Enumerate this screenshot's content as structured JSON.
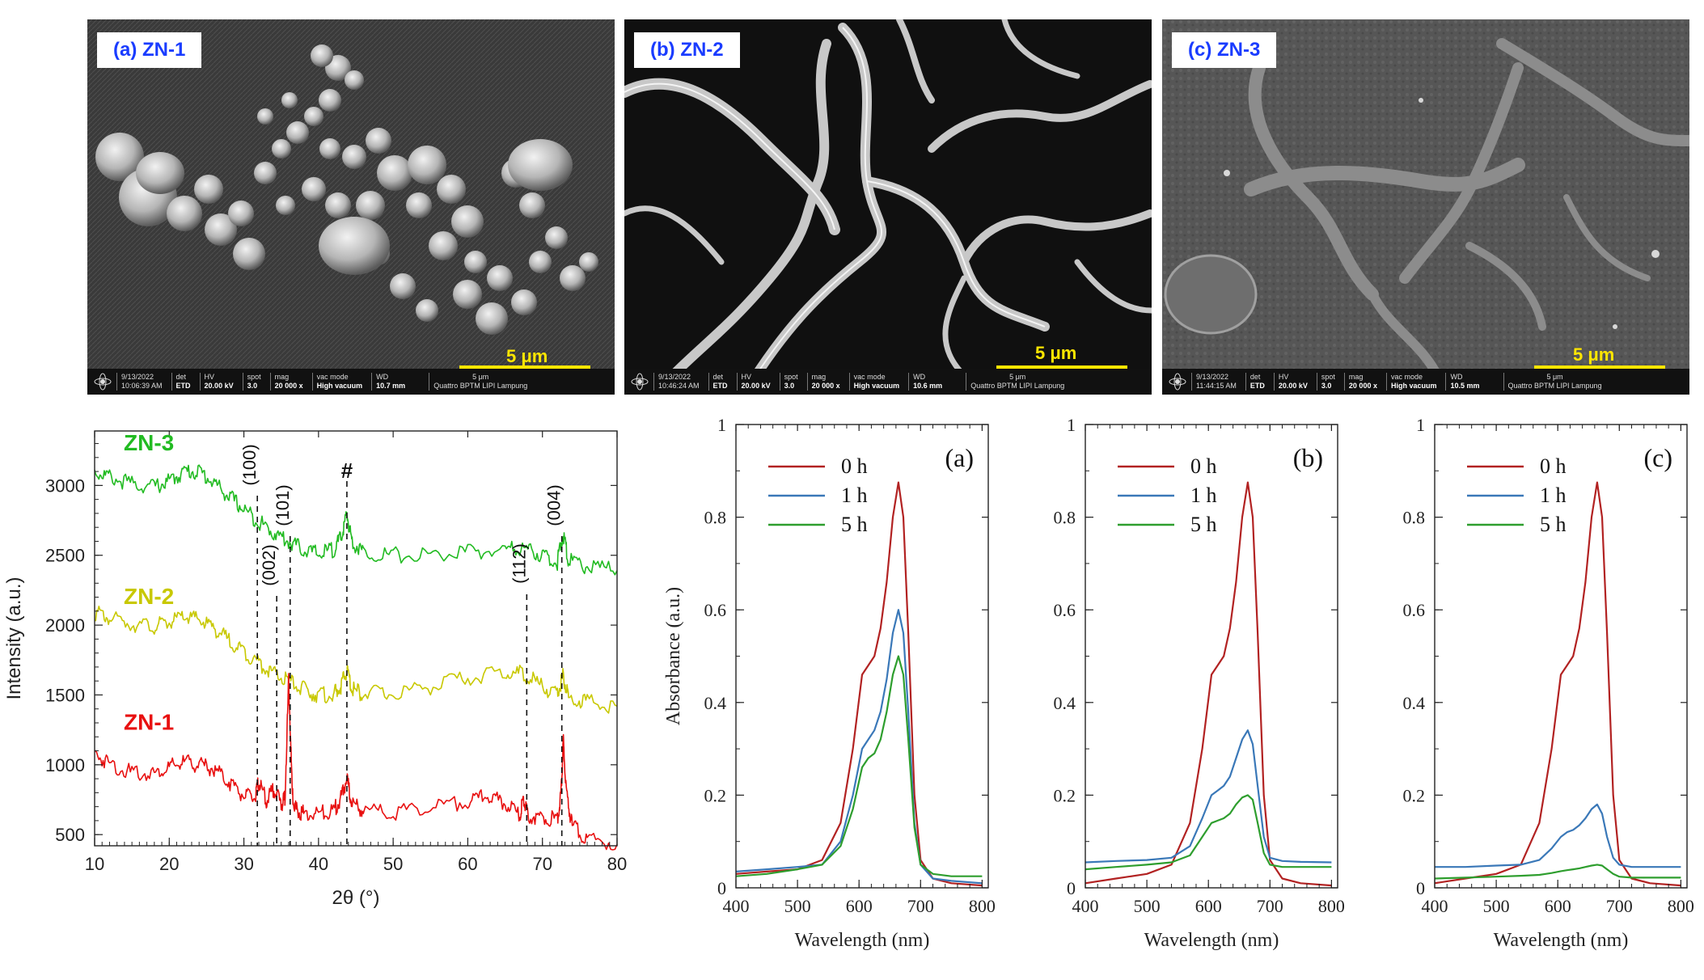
{
  "sem_panels": [
    {
      "label": "(a) ZN-1",
      "scale": "5 μm",
      "bar": {
        "date": "9/13/2022",
        "time": "10:06:39 AM",
        "det_label": "det",
        "det": "ETD",
        "hv_label": "HV",
        "hv": "20.00 kV",
        "spot_label": "spot",
        "spot": "3.0",
        "mag_label": "mag",
        "mag": "20 000 x",
        "vac_label": "vac mode",
        "vac": "High vacuum",
        "wd_label": "WD",
        "wd": "10.7 mm",
        "scale_small": "5 μm",
        "facility": "Quattro BPTM LIPI Lampung"
      }
    },
    {
      "label": "(b) ZN-2",
      "scale": "5 μm",
      "bar": {
        "date": "9/13/2022",
        "time": "10:46:24 AM",
        "det_label": "det",
        "det": "ETD",
        "hv_label": "HV",
        "hv": "20.00 kV",
        "spot_label": "spot",
        "spot": "3.0",
        "mag_label": "mag",
        "mag": "20 000 x",
        "vac_label": "vac mode",
        "vac": "High vacuum",
        "wd_label": "WD",
        "wd": "10.6 mm",
        "scale_small": "5 μm",
        "facility": "Quattro BPTM LIPI Lampung"
      }
    },
    {
      "label": "(c) ZN-3",
      "scale": "5 μm",
      "bar": {
        "date": "9/13/2022",
        "time": "11:44:15 AM",
        "det_label": "det",
        "det": "ETD",
        "hv_label": "HV",
        "hv": "20.00 kV",
        "spot_label": "spot",
        "spot": "3.0",
        "mag_label": "mag",
        "mag": "20 000 x",
        "vac_label": "vac mode",
        "vac": "High vacuum",
        "wd_label": "WD",
        "wd": "10.5 mm",
        "scale_small": "5 μm",
        "facility": "Quattro BPTM LIPI Lampung"
      }
    }
  ],
  "chart_data": [
    {
      "type": "line",
      "xlabel": "2θ (°)",
      "ylabel": "Intensity (a.u.)",
      "xlim": [
        10,
        80
      ],
      "ylim": [
        420,
        3390
      ],
      "xticks": [
        10,
        20,
        30,
        40,
        50,
        60,
        70,
        80
      ],
      "yticks": [
        500,
        1000,
        1500,
        2000,
        2500,
        3000
      ],
      "series": [
        {
          "name": "ZN-3",
          "color": "#22bb22",
          "x": [
            10,
            12,
            15,
            18,
            20,
            22,
            24,
            26,
            28,
            30,
            32,
            34,
            36,
            38,
            40,
            42,
            43,
            43.8,
            44.5,
            46,
            50,
            55,
            60,
            65,
            67.5,
            70,
            72,
            72.8,
            73.5,
            76,
            80
          ],
          "y": [
            3100,
            3060,
            3010,
            2990,
            3030,
            3100,
            3100,
            3020,
            2920,
            2830,
            2740,
            2660,
            2600,
            2540,
            2510,
            2540,
            2620,
            2790,
            2600,
            2520,
            2500,
            2500,
            2520,
            2540,
            2550,
            2500,
            2450,
            2650,
            2460,
            2420,
            2390
          ]
        },
        {
          "name": "ZN-2",
          "color": "#c8c800",
          "x": [
            10,
            12,
            15,
            18,
            20,
            22,
            24,
            26,
            28,
            30,
            32,
            34,
            36,
            38,
            40,
            42,
            43,
            43.8,
            44.5,
            46,
            50,
            55,
            60,
            65,
            67.5,
            70,
            72,
            72.8,
            73.5,
            76,
            80
          ],
          "y": [
            2090,
            2050,
            2010,
            1990,
            2020,
            2060,
            2040,
            1980,
            1890,
            1810,
            1730,
            1650,
            1600,
            1540,
            1500,
            1500,
            1560,
            1680,
            1540,
            1510,
            1510,
            1560,
            1620,
            1660,
            1650,
            1560,
            1500,
            1640,
            1480,
            1450,
            1420
          ]
        },
        {
          "name": "ZN-1",
          "color": "#e81010",
          "x": [
            10,
            12,
            15,
            18,
            20,
            22,
            24,
            26,
            28,
            30,
            31.5,
            32,
            33,
            34,
            35,
            35.5,
            36,
            36.5,
            37,
            38,
            40,
            42,
            43,
            43.8,
            44.5,
            46,
            50,
            55,
            60,
            62.5,
            65,
            67,
            67.5,
            68,
            70,
            72,
            72.5,
            72.8,
            73.2,
            74,
            76,
            80
          ],
          "y": [
            1080,
            1010,
            940,
            940,
            980,
            1020,
            1000,
            970,
            880,
            780,
            760,
            880,
            740,
            830,
            720,
            760,
            1600,
            780,
            680,
            650,
            650,
            670,
            760,
            900,
            720,
            670,
            660,
            690,
            740,
            780,
            720,
            640,
            760,
            640,
            620,
            610,
            800,
            1180,
            800,
            560,
            470,
            430
          ]
        }
      ],
      "annotations": [
        {
          "text": "(100)",
          "x": 31.8
        },
        {
          "text": "(002)",
          "x": 34.4
        },
        {
          "text": "(101)",
          "x": 36.2
        },
        {
          "text": "#",
          "x": 43.8
        },
        {
          "text": "(112)",
          "x": 67.9
        },
        {
          "text": "(004)",
          "x": 72.6
        }
      ]
    },
    {
      "type": "line",
      "label": "(a)",
      "xlabel": "Wavelength (nm)",
      "ylabel": "Absorbance (a.u.)",
      "xlim": [
        400,
        810
      ],
      "ylim": [
        0,
        1
      ],
      "xticks": [
        400,
        500,
        600,
        700,
        800
      ],
      "yticks": [
        0,
        0.2,
        0.4,
        0.6,
        0.8,
        1
      ],
      "legend": "top-left",
      "series": [
        {
          "name": "0 h",
          "color": "#b22222",
          "x": [
            400,
            450,
            500,
            540,
            570,
            590,
            605,
            615,
            625,
            635,
            645,
            655,
            664,
            672,
            680,
            690,
            700,
            720,
            750,
            800
          ],
          "y": [
            0.03,
            0.035,
            0.04,
            0.06,
            0.14,
            0.3,
            0.46,
            0.48,
            0.5,
            0.56,
            0.66,
            0.8,
            0.875,
            0.8,
            0.55,
            0.2,
            0.06,
            0.02,
            0.01,
            0.005
          ]
        },
        {
          "name": "1 h",
          "color": "#3a78b8",
          "x": [
            400,
            450,
            500,
            540,
            570,
            590,
            605,
            615,
            625,
            635,
            645,
            655,
            664,
            672,
            680,
            690,
            700,
            720,
            750,
            800
          ],
          "y": [
            0.035,
            0.04,
            0.045,
            0.05,
            0.1,
            0.2,
            0.3,
            0.32,
            0.34,
            0.38,
            0.45,
            0.55,
            0.6,
            0.55,
            0.38,
            0.14,
            0.05,
            0.02,
            0.015,
            0.01
          ]
        },
        {
          "name": "5 h",
          "color": "#2e9e2e",
          "x": [
            400,
            450,
            500,
            540,
            570,
            590,
            605,
            615,
            625,
            635,
            645,
            655,
            664,
            672,
            680,
            690,
            700,
            720,
            750,
            800
          ],
          "y": [
            0.025,
            0.03,
            0.04,
            0.05,
            0.09,
            0.17,
            0.26,
            0.28,
            0.29,
            0.32,
            0.38,
            0.46,
            0.5,
            0.46,
            0.32,
            0.13,
            0.05,
            0.03,
            0.025,
            0.025
          ]
        }
      ]
    },
    {
      "type": "line",
      "label": "(b)",
      "xlabel": "Wavelength (nm)",
      "ylabel": "",
      "xlim": [
        400,
        810
      ],
      "ylim": [
        0,
        1
      ],
      "xticks": [
        400,
        500,
        600,
        700,
        800
      ],
      "yticks": [
        0,
        0.2,
        0.4,
        0.6,
        0.8,
        1
      ],
      "legend": "top-left",
      "series": [
        {
          "name": "0 h",
          "color": "#b22222",
          "x": [
            400,
            450,
            500,
            540,
            570,
            590,
            605,
            615,
            625,
            635,
            645,
            655,
            664,
            672,
            680,
            690,
            700,
            720,
            750,
            800
          ],
          "y": [
            0.01,
            0.02,
            0.03,
            0.05,
            0.14,
            0.3,
            0.46,
            0.48,
            0.5,
            0.56,
            0.66,
            0.8,
            0.875,
            0.8,
            0.55,
            0.2,
            0.06,
            0.02,
            0.01,
            0.005
          ]
        },
        {
          "name": "1 h",
          "color": "#3a78b8",
          "x": [
            400,
            450,
            500,
            540,
            570,
            590,
            605,
            615,
            625,
            635,
            645,
            655,
            664,
            672,
            680,
            690,
            700,
            720,
            750,
            800
          ],
          "y": [
            0.055,
            0.058,
            0.06,
            0.065,
            0.09,
            0.15,
            0.2,
            0.21,
            0.22,
            0.24,
            0.28,
            0.32,
            0.34,
            0.31,
            0.22,
            0.11,
            0.065,
            0.058,
            0.056,
            0.055
          ]
        },
        {
          "name": "5 h",
          "color": "#2e9e2e",
          "x": [
            400,
            450,
            500,
            540,
            570,
            590,
            605,
            615,
            625,
            635,
            645,
            655,
            664,
            672,
            680,
            690,
            700,
            720,
            750,
            800
          ],
          "y": [
            0.04,
            0.045,
            0.05,
            0.055,
            0.07,
            0.11,
            0.14,
            0.145,
            0.15,
            0.16,
            0.18,
            0.195,
            0.2,
            0.19,
            0.14,
            0.075,
            0.05,
            0.045,
            0.045,
            0.045
          ]
        }
      ]
    },
    {
      "type": "line",
      "label": "(c)",
      "xlabel": "Wavelength (nm)",
      "ylabel": "",
      "xlim": [
        400,
        810
      ],
      "ylim": [
        0,
        1
      ],
      "xticks": [
        400,
        500,
        600,
        700,
        800
      ],
      "yticks": [
        0,
        0.2,
        0.4,
        0.6,
        0.8,
        1
      ],
      "legend": "top-left",
      "series": [
        {
          "name": "0 h",
          "color": "#b22222",
          "x": [
            400,
            450,
            500,
            540,
            570,
            590,
            605,
            615,
            625,
            635,
            645,
            655,
            664,
            672,
            680,
            690,
            700,
            720,
            750,
            800
          ],
          "y": [
            0.01,
            0.02,
            0.03,
            0.05,
            0.14,
            0.3,
            0.46,
            0.48,
            0.5,
            0.56,
            0.66,
            0.8,
            0.875,
            0.8,
            0.55,
            0.2,
            0.06,
            0.02,
            0.01,
            0.005
          ]
        },
        {
          "name": "1 h",
          "color": "#3a78b8",
          "x": [
            400,
            450,
            500,
            540,
            570,
            590,
            605,
            615,
            625,
            635,
            645,
            655,
            664,
            672,
            680,
            690,
            700,
            720,
            750,
            800
          ],
          "y": [
            0.045,
            0.045,
            0.048,
            0.05,
            0.06,
            0.085,
            0.11,
            0.12,
            0.125,
            0.135,
            0.15,
            0.17,
            0.18,
            0.16,
            0.11,
            0.065,
            0.05,
            0.045,
            0.045,
            0.045
          ]
        },
        {
          "name": "5 h",
          "color": "#2e9e2e",
          "x": [
            400,
            450,
            500,
            540,
            570,
            590,
            605,
            615,
            625,
            635,
            645,
            655,
            664,
            672,
            680,
            690,
            700,
            720,
            750,
            800
          ],
          "y": [
            0.02,
            0.022,
            0.024,
            0.026,
            0.028,
            0.032,
            0.036,
            0.038,
            0.04,
            0.042,
            0.045,
            0.048,
            0.05,
            0.048,
            0.04,
            0.03,
            0.024,
            0.022,
            0.022,
            0.022
          ]
        }
      ]
    }
  ]
}
